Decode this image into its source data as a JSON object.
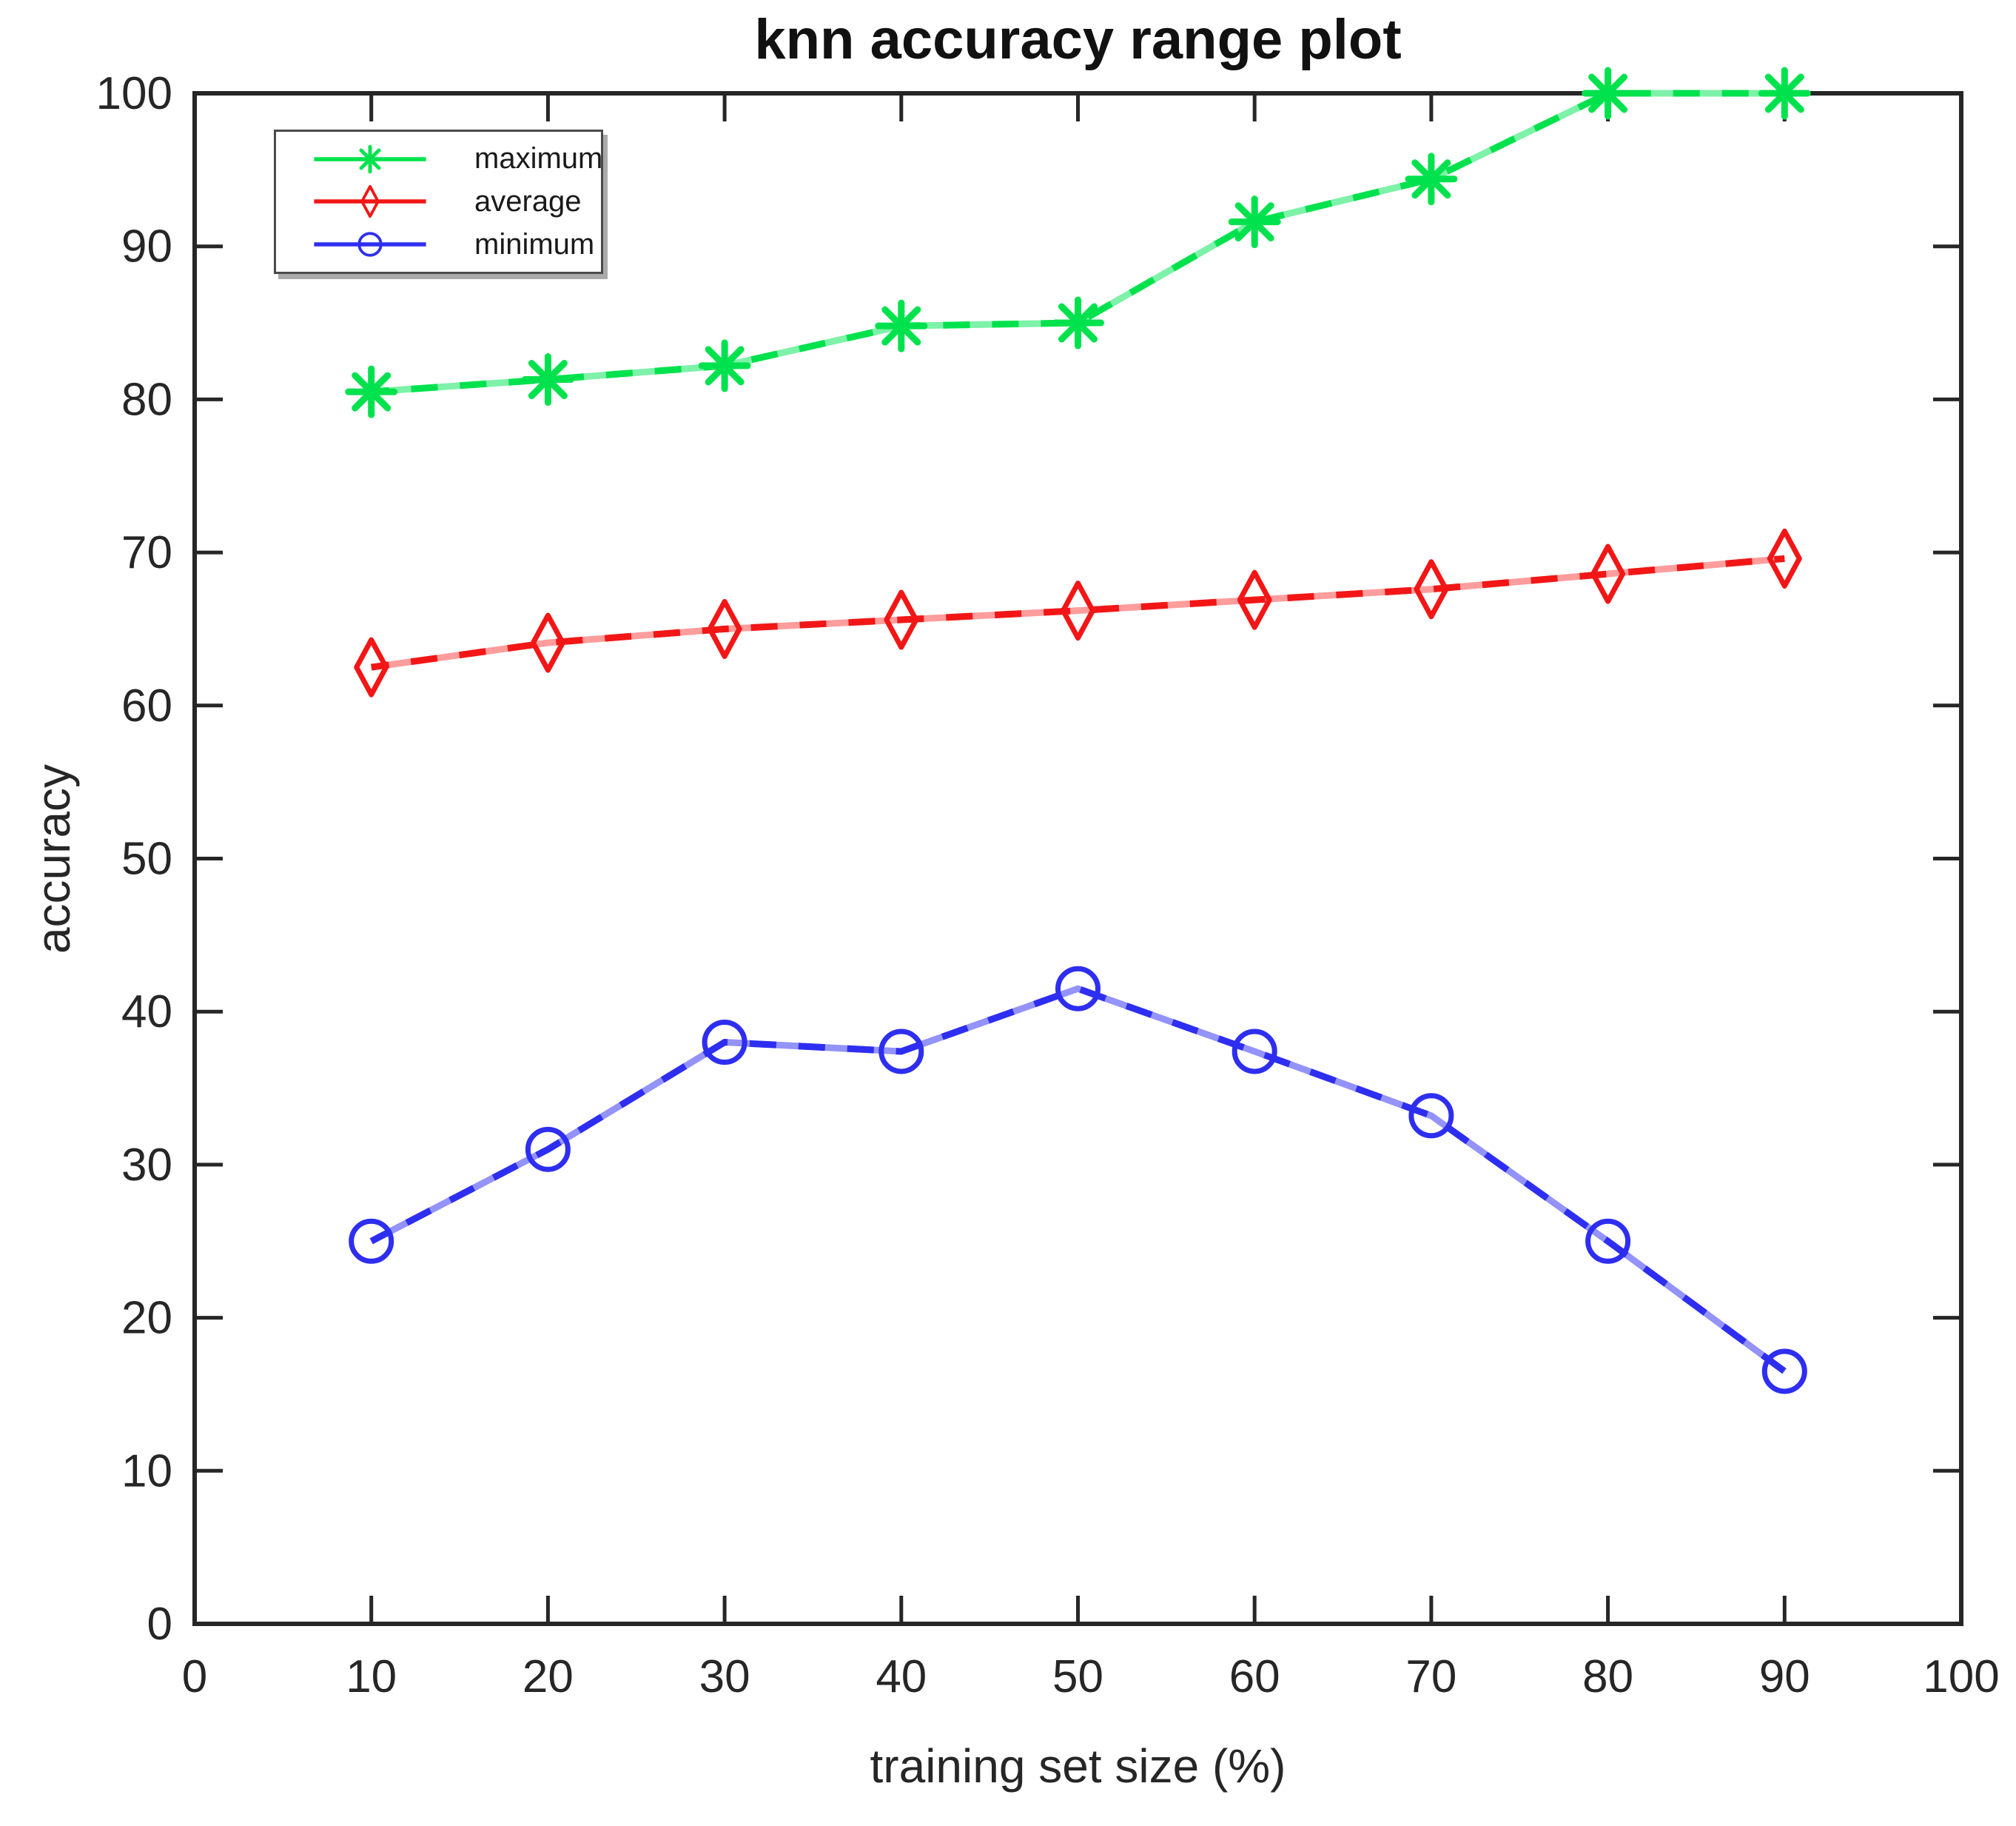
{
  "page": {
    "background_color": "#ffffff"
  },
  "chart_data": {
    "type": "line",
    "title": "knn accuracy range plot",
    "xlabel": "training set size (%)",
    "ylabel": "accuracy",
    "xlim": [
      0,
      100
    ],
    "ylim": [
      0,
      100
    ],
    "xticks": [
      0,
      10,
      20,
      30,
      40,
      50,
      60,
      70,
      80,
      90,
      100
    ],
    "yticks": [
      0,
      10,
      20,
      30,
      40,
      50,
      60,
      70,
      80,
      90,
      100
    ],
    "grid": false,
    "legend_position": "top-left",
    "axis_color": "#262626",
    "tick_label_color": "#262626",
    "title_color": "#111111",
    "x": [
      10,
      20,
      30,
      40,
      50,
      60,
      70,
      80,
      90
    ],
    "series": [
      {
        "name": "maximum",
        "marker": "asterisk",
        "line_style": "dashed-over-solid",
        "color": "#00e24d",
        "light_color": "#7df2a8",
        "values": [
          80.5,
          81.3,
          82.2,
          84.8,
          85,
          91.6,
          94.4,
          100,
          100
        ]
      },
      {
        "name": "average",
        "marker": "diamond",
        "line_style": "dashed-over-solid",
        "color": "#f21616",
        "light_color": "#ff9d9d",
        "values": [
          62.5,
          64.1,
          65,
          65.6,
          66.2,
          66.9,
          67.6,
          68.6,
          69.6
        ]
      },
      {
        "name": "minimum",
        "marker": "circle",
        "line_style": "dashed-over-solid",
        "color": "#2e2ef0",
        "light_color": "#9393fa",
        "values": [
          25,
          31,
          38,
          37.4,
          41.5,
          37.4,
          33.2,
          25,
          16.5
        ]
      }
    ]
  }
}
